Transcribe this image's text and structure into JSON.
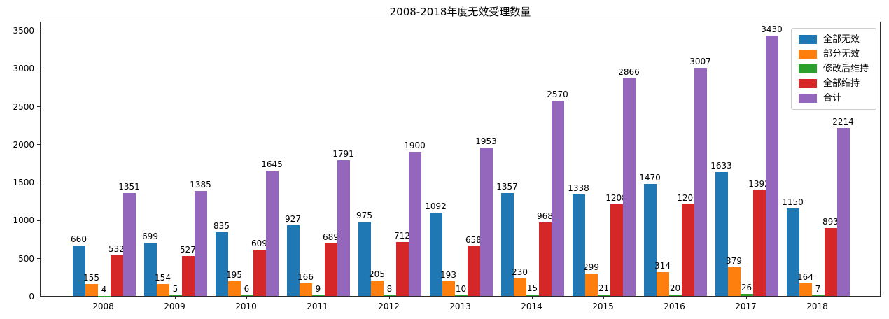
{
  "title": "2008-2018年度无效受理数量",
  "chart_data": {
    "type": "bar",
    "title": "2008-2018年度无效受理数量",
    "xlabel": "",
    "ylabel": "",
    "categories": [
      "2008",
      "2009",
      "2010",
      "2011",
      "2012",
      "2013",
      "2014",
      "2015",
      "2016",
      "2017",
      "2018"
    ],
    "series": [
      {
        "name": "全部无效",
        "color": "#1f77b4",
        "values": [
          660,
          699,
          835,
          927,
          975,
          1092,
          1357,
          1338,
          1470,
          1633,
          1150
        ]
      },
      {
        "name": "部分无效",
        "color": "#ff7f0e",
        "values": [
          155,
          154,
          195,
          166,
          205,
          193,
          230,
          299,
          314,
          379,
          164
        ]
      },
      {
        "name": "修改后维持",
        "color": "#2ca02c",
        "values": [
          4,
          5,
          6,
          9,
          8,
          10,
          15,
          21,
          20,
          26,
          7
        ]
      },
      {
        "name": "全部维持",
        "color": "#d62728",
        "values": [
          532,
          527,
          609,
          689,
          712,
          658,
          968,
          1208,
          1203,
          1392,
          893
        ]
      },
      {
        "name": "合计",
        "color": "#9467bd",
        "values": [
          1351,
          1385,
          1645,
          1791,
          1900,
          1953,
          2570,
          2866,
          3007,
          3430,
          2214
        ]
      }
    ],
    "yticks": [
      0,
      500,
      1000,
      1500,
      2000,
      2500,
      3000,
      3500
    ],
    "ylim": [
      0,
      3620
    ],
    "grid": false,
    "bar_labels": true,
    "legend_position": "upper right",
    "axis_color": "#2b2b2b",
    "background_color": "#ffffff"
  }
}
